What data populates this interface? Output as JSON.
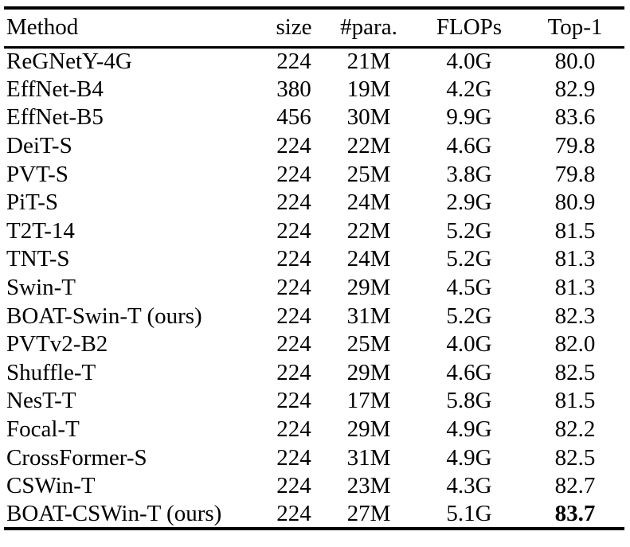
{
  "colors": {
    "background": "#ffffff",
    "text": "#000000",
    "rule": "#000000"
  },
  "table": {
    "columns": [
      {
        "key": "method",
        "label": "Method"
      },
      {
        "key": "size",
        "label": "size"
      },
      {
        "key": "para",
        "label": "#para."
      },
      {
        "key": "flops",
        "label": "FLOPs"
      },
      {
        "key": "top1",
        "label": "Top-1"
      }
    ],
    "rows": [
      {
        "method": "ReGNetY-4G",
        "size": "224",
        "para": "21M",
        "flops": "4.0G",
        "top1": "80.0",
        "bold_keys": []
      },
      {
        "method": "EffNet-B4",
        "size": "380",
        "para": "19M",
        "flops": "4.2G",
        "top1": "82.9",
        "bold_keys": []
      },
      {
        "method": "EffNet-B5",
        "size": "456",
        "para": "30M",
        "flops": "9.9G",
        "top1": "83.6",
        "bold_keys": []
      },
      {
        "method": "DeiT-S",
        "size": "224",
        "para": "22M",
        "flops": "4.6G",
        "top1": "79.8",
        "bold_keys": []
      },
      {
        "method": "PVT-S",
        "size": "224",
        "para": "25M",
        "flops": "3.8G",
        "top1": "79.8",
        "bold_keys": []
      },
      {
        "method": "PiT-S",
        "size": "224",
        "para": "24M",
        "flops": "2.9G",
        "top1": "80.9",
        "bold_keys": []
      },
      {
        "method": "T2T-14",
        "size": "224",
        "para": "22M",
        "flops": "5.2G",
        "top1": "81.5",
        "bold_keys": []
      },
      {
        "method": "TNT-S",
        "size": "224",
        "para": "24M",
        "flops": "5.2G",
        "top1": "81.3",
        "bold_keys": []
      },
      {
        "method": "Swin-T",
        "size": "224",
        "para": "29M",
        "flops": "4.5G",
        "top1": "81.3",
        "bold_keys": []
      },
      {
        "method": "BOAT-Swin-T (ours)",
        "size": "224",
        "para": "31M",
        "flops": "5.2G",
        "top1": "82.3",
        "bold_keys": []
      },
      {
        "method": "PVTv2-B2",
        "size": "224",
        "para": "25M",
        "flops": "4.0G",
        "top1": "82.0",
        "bold_keys": []
      },
      {
        "method": "Shuffle-T",
        "size": "224",
        "para": "29M",
        "flops": "4.6G",
        "top1": "82.5",
        "bold_keys": []
      },
      {
        "method": "NesT-T",
        "size": "224",
        "para": "17M",
        "flops": "5.8G",
        "top1": "81.5",
        "bold_keys": []
      },
      {
        "method": "Focal-T",
        "size": "224",
        "para": "29M",
        "flops": "4.9G",
        "top1": "82.2",
        "bold_keys": []
      },
      {
        "method": "CrossFormer-S",
        "size": "224",
        "para": "31M",
        "flops": "4.9G",
        "top1": "82.5",
        "bold_keys": []
      },
      {
        "method": "CSWin-T",
        "size": "224",
        "para": "23M",
        "flops": "4.3G",
        "top1": "82.7",
        "bold_keys": []
      },
      {
        "method": "BOAT-CSWin-T (ours)",
        "size": "224",
        "para": "27M",
        "flops": "5.1G",
        "top1": "83.7",
        "bold_keys": [
          "top1"
        ]
      }
    ]
  }
}
